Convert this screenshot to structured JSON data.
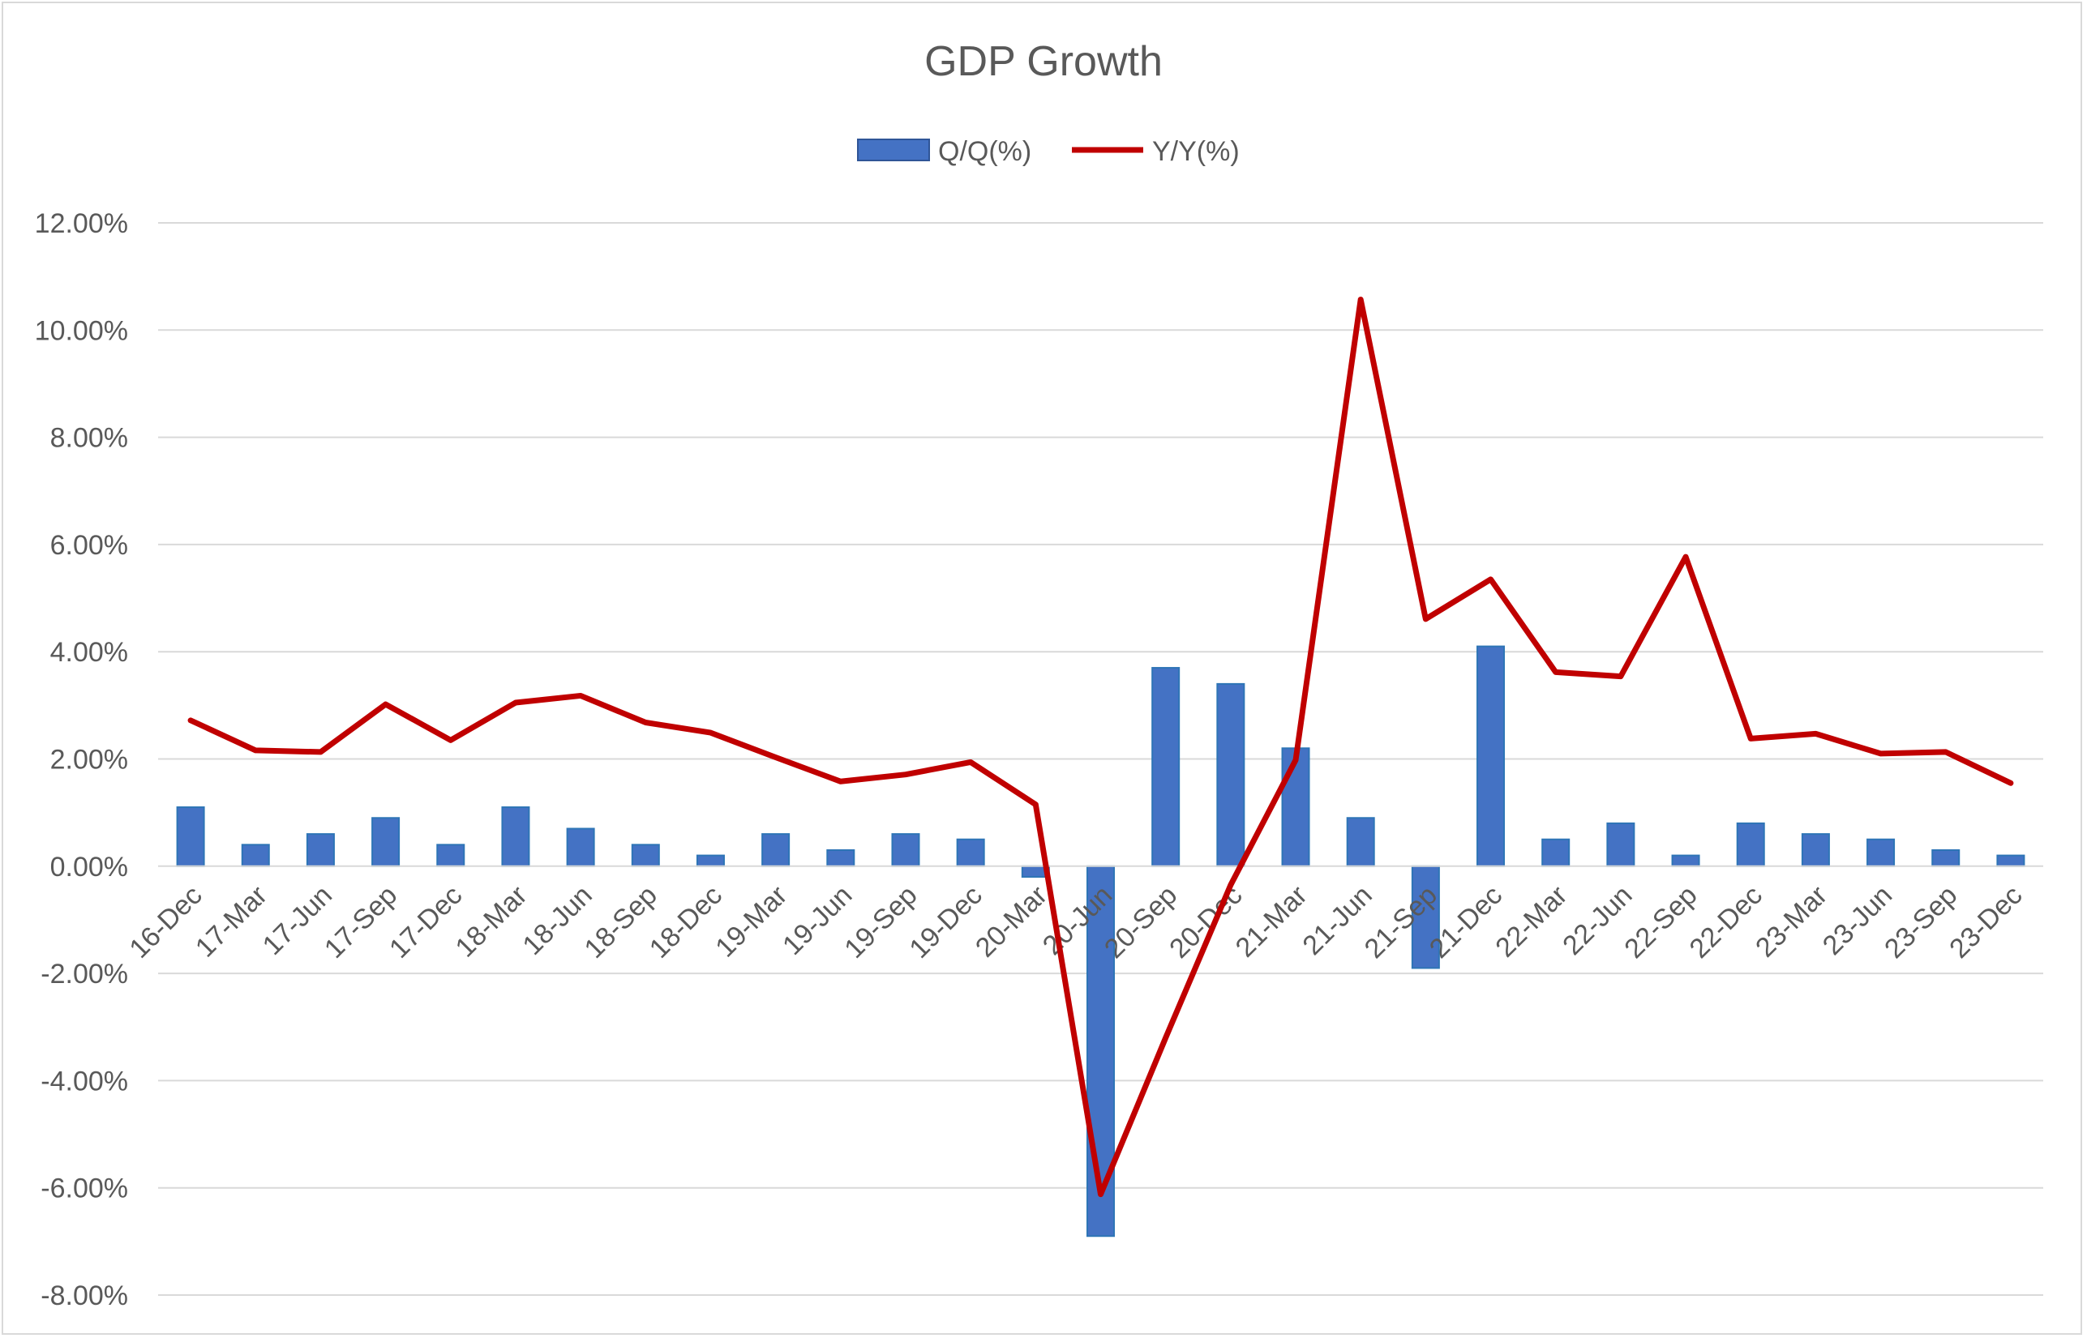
{
  "chart_data": {
    "type": "bar",
    "title": "GDP Growth",
    "xlabel": "",
    "ylabel": "",
    "categories": [
      "16-Dec",
      "17-Mar",
      "17-Jun",
      "17-Sep",
      "17-Dec",
      "18-Mar",
      "18-Jun",
      "18-Sep",
      "18-Dec",
      "19-Mar",
      "19-Jun",
      "19-Sep",
      "19-Dec",
      "20-Mar",
      "20-Jun",
      "20-Sep",
      "20-Dec",
      "21-Mar",
      "21-Jun",
      "21-Sep",
      "21-Dec",
      "22-Mar",
      "22-Jun",
      "22-Sep",
      "22-Dec",
      "23-Mar",
      "23-Jun",
      "23-Sep",
      "23-Dec"
    ],
    "series": [
      {
        "name": "Q/Q(%)",
        "type": "bar",
        "color": "#4472c4",
        "values": [
          1.1,
          0.4,
          0.6,
          0.9,
          0.4,
          1.1,
          0.7,
          0.4,
          0.2,
          0.6,
          0.3,
          0.6,
          0.5,
          -0.2,
          -6.9,
          3.7,
          3.4,
          2.2,
          0.9,
          -1.9,
          4.1,
          0.5,
          0.8,
          0.2,
          0.8,
          0.6,
          0.5,
          0.3,
          0.2
        ]
      },
      {
        "name": "Y/Y(%)",
        "type": "line",
        "color": "#c00000",
        "values": [
          2.72,
          2.16,
          2.13,
          3.02,
          2.35,
          3.05,
          3.18,
          2.68,
          2.49,
          2.03,
          1.58,
          1.71,
          1.94,
          1.15,
          -6.12,
          -3.2,
          -0.35,
          1.98,
          10.57,
          4.61,
          5.35,
          3.62,
          3.54,
          5.77,
          2.38,
          2.47,
          2.1,
          2.13,
          1.55
        ]
      }
    ],
    "ylim": [
      -8,
      12
    ],
    "yticks": [
      "12.00%",
      "10.00%",
      "8.00%",
      "6.00%",
      "4.00%",
      "2.00%",
      "0.00%",
      "-2.00%",
      "-4.00%",
      "-6.00%",
      "-8.00%"
    ],
    "grid": true,
    "legend_position": "top-center"
  }
}
